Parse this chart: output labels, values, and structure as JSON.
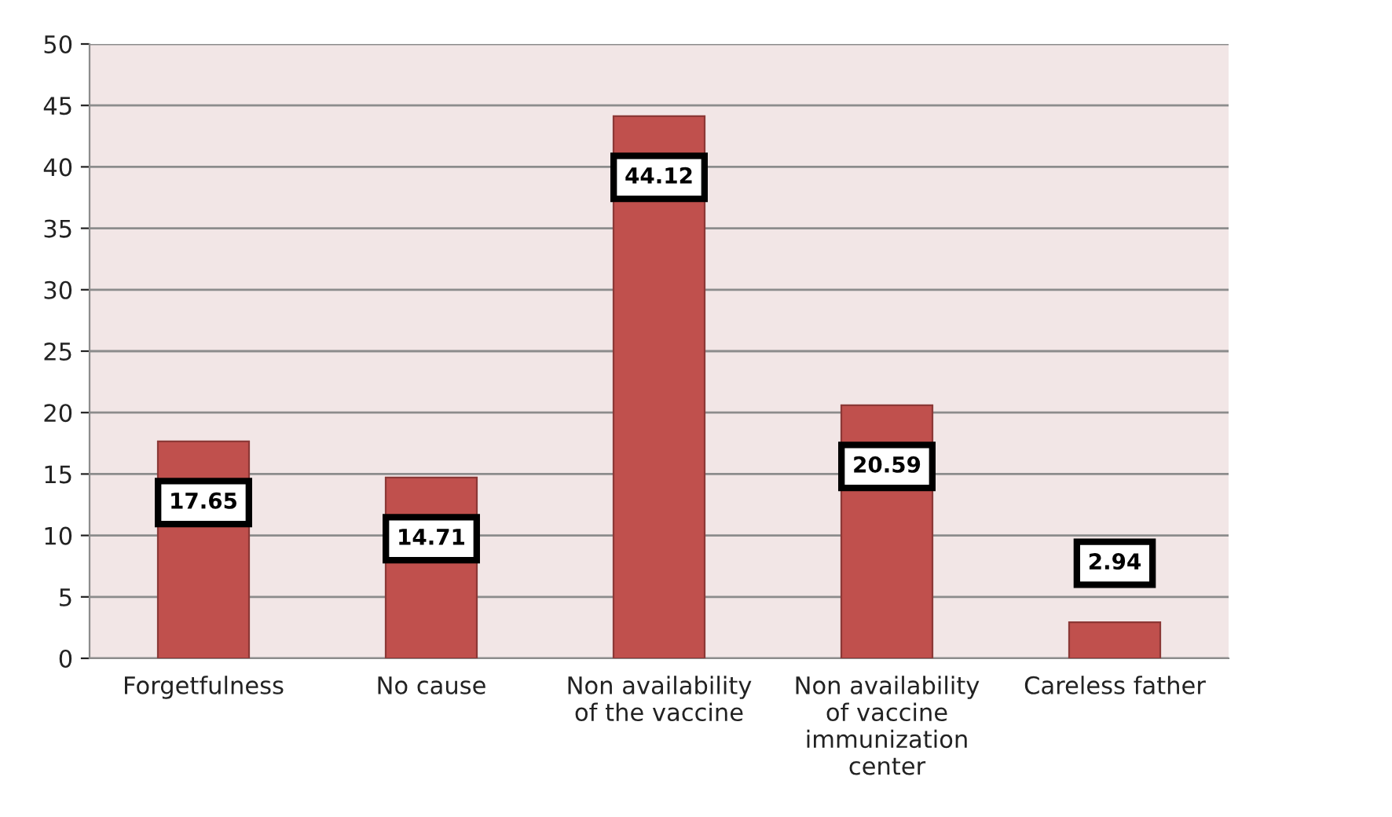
{
  "chart_data": {
    "type": "bar",
    "categories": [
      "Forgetfulness",
      "No cause",
      "Non availability of the vaccine",
      "Non availability of vaccine immunization center",
      "Careless father"
    ],
    "values": [
      17.65,
      14.71,
      44.12,
      20.59,
      2.94
    ],
    "color": "#c0504d",
    "ylim": [
      0,
      50
    ],
    "yticks": [
      0,
      5,
      10,
      15,
      20,
      25,
      30,
      35,
      40,
      45,
      50
    ],
    "grid": "y",
    "data_labels": true
  }
}
